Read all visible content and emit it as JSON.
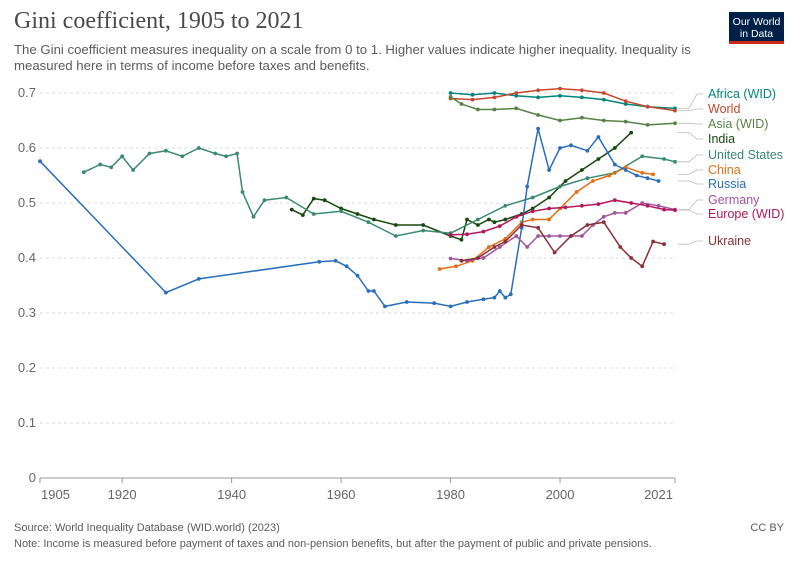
{
  "header": {
    "title": "Gini coefficient, 1905 to 2021",
    "subtitle": "The Gini coefficient measures inequality on a scale from 0 to 1. Higher values indicate higher inequality. Inequality is measured here in terms of income before taxes and benefits."
  },
  "logo": {
    "line1": "Our World",
    "line2": "in Data"
  },
  "footer": {
    "source": "Source: World Inequality Database (WID.world) (2023)",
    "note": "Note: Income is measured before payment of taxes and non-pension benefits, but after the payment of public and private pensions.",
    "license": "CC BY"
  },
  "chart_data": {
    "type": "line",
    "title": "Gini coefficient, 1905 to 2021",
    "xlim": [
      1905,
      2021
    ],
    "ylim": [
      0,
      0.7
    ],
    "x_ticks": [
      "1905",
      "1920",
      "1940",
      "1960",
      "1980",
      "2000",
      "2021"
    ],
    "y_ticks": [
      "0",
      "0.1",
      "0.2",
      "0.3",
      "0.4",
      "0.5",
      "0.6",
      "0.7"
    ],
    "grid": true,
    "legend": "right",
    "series": [
      {
        "name": "Africa (WID)",
        "color": "#00847e",
        "x": [
          1980,
          1984,
          1988,
          1992,
          1996,
          2000,
          2004,
          2008,
          2012,
          2016,
          2021
        ],
        "y": [
          0.7,
          0.697,
          0.7,
          0.695,
          0.692,
          0.695,
          0.692,
          0.688,
          0.68,
          0.675,
          0.672
        ]
      },
      {
        "name": "World",
        "color": "#c8462b",
        "x": [
          1980,
          1984,
          1988,
          1992,
          1996,
          2000,
          2004,
          2008,
          2012,
          2016,
          2021
        ],
        "y": [
          0.69,
          0.688,
          0.692,
          0.7,
          0.705,
          0.708,
          0.705,
          0.7,
          0.685,
          0.675,
          0.668
        ]
      },
      {
        "name": "Asia (WID)",
        "color": "#578145",
        "x": [
          1980,
          1982,
          1985,
          1988,
          1992,
          1996,
          2000,
          2004,
          2008,
          2012,
          2016,
          2021
        ],
        "y": [
          0.693,
          0.68,
          0.67,
          0.67,
          0.672,
          0.66,
          0.65,
          0.655,
          0.65,
          0.648,
          0.642,
          0.645
        ]
      },
      {
        "name": "India",
        "color": "#18470f",
        "x": [
          1951,
          1953,
          1955,
          1957,
          1960,
          1963,
          1966,
          1970,
          1975,
          1980,
          1982,
          1983,
          1985,
          1987,
          1988,
          1990,
          1993,
          1995,
          1998,
          2001,
          2004,
          2007,
          2010,
          2013
        ],
        "y": [
          0.488,
          0.478,
          0.508,
          0.505,
          0.49,
          0.48,
          0.47,
          0.46,
          0.46,
          0.44,
          0.433,
          0.47,
          0.46,
          0.47,
          0.465,
          0.47,
          0.48,
          0.49,
          0.51,
          0.54,
          0.56,
          0.58,
          0.6,
          0.628
        ]
      },
      {
        "name": "United States",
        "color": "#3a8a6e",
        "x": [
          1913,
          1916,
          1918,
          1920,
          1922,
          1925,
          1928,
          1931,
          1934,
          1937,
          1939,
          1941,
          1942,
          1944,
          1946,
          1950,
          1955,
          1960,
          1965,
          1970,
          1975,
          1980,
          1985,
          1990,
          1995,
          2000,
          2005,
          2010,
          2015,
          2019,
          2021
        ],
        "y": [
          0.556,
          0.57,
          0.565,
          0.585,
          0.56,
          0.59,
          0.595,
          0.585,
          0.6,
          0.59,
          0.585,
          0.59,
          0.52,
          0.475,
          0.505,
          0.51,
          0.48,
          0.485,
          0.465,
          0.44,
          0.45,
          0.445,
          0.47,
          0.495,
          0.51,
          0.53,
          0.545,
          0.555,
          0.585,
          0.58,
          0.575
        ]
      },
      {
        "name": "China",
        "color": "#e56e16",
        "x": [
          1978,
          1981,
          1984,
          1987,
          1990,
          1993,
          1995,
          1998,
          2000,
          2003,
          2006,
          2009,
          2012,
          2015,
          2017
        ],
        "y": [
          0.38,
          0.385,
          0.395,
          0.42,
          0.435,
          0.465,
          0.47,
          0.47,
          0.49,
          0.52,
          0.54,
          0.55,
          0.565,
          0.555,
          0.552
        ]
      },
      {
        "name": "Russia",
        "color": "#2a6ebb",
        "x": [
          1905,
          1928,
          1934,
          1956,
          1959,
          1961,
          1963,
          1965,
          1966,
          1968,
          1972,
          1977,
          1980,
          1983,
          1986,
          1988,
          1989,
          1990,
          1991,
          1993,
          1994,
          1996,
          1998,
          2000,
          2002,
          2005,
          2007,
          2010,
          2012,
          2014,
          2016,
          2018
        ],
        "y": [
          0.576,
          0.337,
          0.362,
          0.393,
          0.395,
          0.385,
          0.368,
          0.34,
          0.34,
          0.312,
          0.32,
          0.318,
          0.312,
          0.32,
          0.325,
          0.328,
          0.34,
          0.328,
          0.334,
          0.455,
          0.53,
          0.635,
          0.56,
          0.6,
          0.605,
          0.595,
          0.62,
          0.57,
          0.56,
          0.55,
          0.545,
          0.54
        ]
      },
      {
        "name": "Germany",
        "color": "#a2559c",
        "x": [
          1980,
          1983,
          1986,
          1989,
          1992,
          1994,
          1996,
          1998,
          2000,
          2002,
          2004,
          2006,
          2008,
          2010,
          2012,
          2015,
          2018,
          2021
        ],
        "y": [
          0.399,
          0.395,
          0.4,
          0.42,
          0.44,
          0.42,
          0.44,
          0.44,
          0.44,
          0.44,
          0.44,
          0.46,
          0.475,
          0.482,
          0.482,
          0.5,
          0.495,
          0.488
        ]
      },
      {
        "name": "Europe (WID)",
        "color": "#b5175a",
        "x": [
          1980,
          1983,
          1986,
          1989,
          1992,
          1995,
          1998,
          2001,
          2004,
          2007,
          2010,
          2013,
          2016,
          2019,
          2021
        ],
        "y": [
          0.442,
          0.443,
          0.448,
          0.458,
          0.475,
          0.485,
          0.49,
          0.492,
          0.495,
          0.498,
          0.505,
          0.5,
          0.495,
          0.488,
          0.487
        ]
      },
      {
        "name": "Ukraine",
        "color": "#883039",
        "x": [
          1982,
          1985,
          1988,
          1990,
          1993,
          1996,
          1999,
          2002,
          2005,
          2008,
          2011,
          2013,
          2015,
          2017,
          2019
        ],
        "y": [
          0.395,
          0.4,
          0.42,
          0.43,
          0.46,
          0.455,
          0.41,
          0.44,
          0.46,
          0.465,
          0.42,
          0.4,
          0.385,
          0.43,
          0.425
        ]
      }
    ]
  }
}
